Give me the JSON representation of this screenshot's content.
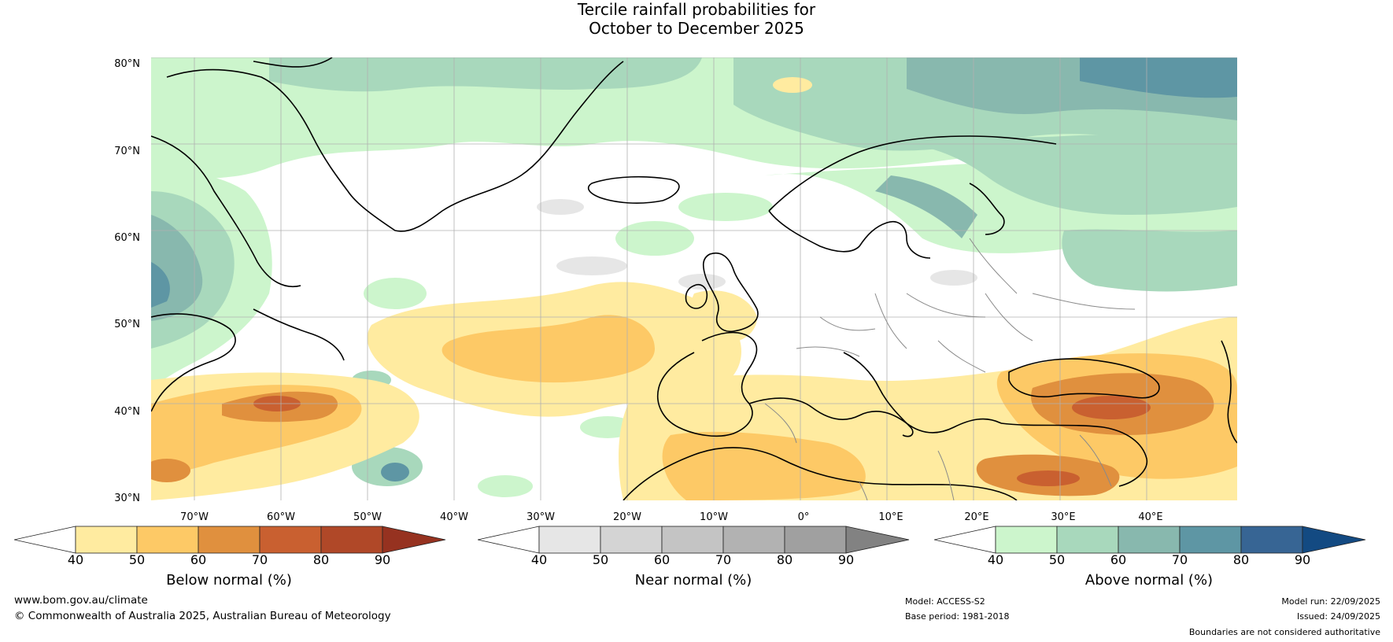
{
  "title": {
    "line1": "Tercile rainfall probabilities for",
    "line2": "October to December 2025"
  },
  "map": {
    "lat_labels": [
      "80°N",
      "70°N",
      "60°N",
      "50°N",
      "40°N",
      "30°N"
    ],
    "lon_labels": [
      "70°W",
      "60°W",
      "50°W",
      "40°W",
      "30°W",
      "20°W",
      "10°W",
      "0°",
      "10°E",
      "20°E",
      "30°E",
      "40°E"
    ]
  },
  "colorbars": [
    {
      "name": "below",
      "title": "Below normal (%)",
      "ticks": [
        "40",
        "50",
        "60",
        "70",
        "80",
        "90"
      ],
      "colors": [
        "#ffffff",
        "#ffeba0",
        "#fdc966",
        "#e0903e",
        "#c96030",
        "#b04828",
        "#963220"
      ]
    },
    {
      "name": "near",
      "title": "Near normal (%)",
      "ticks": [
        "40",
        "50",
        "60",
        "70",
        "80",
        "90"
      ],
      "colors": [
        "#ffffff",
        "#e6e6e6",
        "#d4d4d4",
        "#c4c4c4",
        "#b2b2b2",
        "#a0a0a0",
        "#828282"
      ]
    },
    {
      "name": "above",
      "title": "Above normal (%)",
      "ticks": [
        "40",
        "50",
        "60",
        "70",
        "80",
        "90"
      ],
      "colors": [
        "#ffffff",
        "#ccf5cc",
        "#a8d8bc",
        "#88b8ae",
        "#5e96a4",
        "#376594",
        "#134a82"
      ]
    }
  ],
  "footer": {
    "website": "www.bom.gov.au/climate",
    "copyright": "© Commonwealth of Australia 2025, Australian Bureau of Meteorology",
    "model": "Model: ACCESS-S2",
    "base_period": "Base period: 1981-2018",
    "model_run": "Model run: 22/09/2025",
    "issued": "Issued: 24/09/2025",
    "disclaimer": "Boundaries are not considered authoritative"
  },
  "colors": {
    "land_outline": "#000000",
    "border": "#8a8a8a",
    "grid": "#b0b0b0"
  }
}
